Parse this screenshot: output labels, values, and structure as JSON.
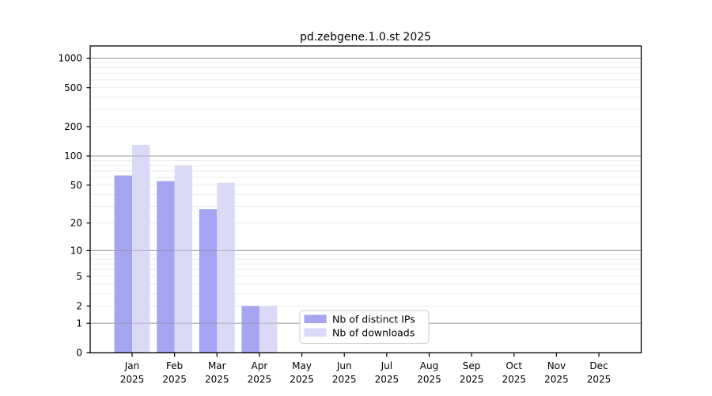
{
  "chart_data": {
    "type": "bar",
    "title": "pd.zebgene.1.0.st 2025",
    "year": "2025",
    "categories": [
      "Jan",
      "Feb",
      "Mar",
      "Apr",
      "May",
      "Jun",
      "Jul",
      "Aug",
      "Sep",
      "Oct",
      "Nov",
      "Dec"
    ],
    "series": [
      {
        "name": "Nb of distinct IPs",
        "color": "#a5a5f2",
        "values": [
          63,
          55,
          28,
          2,
          0,
          0,
          0,
          0,
          0,
          0,
          0,
          0
        ]
      },
      {
        "name": "Nb of downloads",
        "color": "#dadaf7",
        "values": [
          130,
          80,
          53,
          2,
          0,
          0,
          0,
          0,
          0,
          0,
          0,
          0
        ]
      }
    ],
    "y_axis": {
      "scale": "log1p",
      "ticks": [
        0,
        1,
        2,
        5,
        10,
        20,
        50,
        100,
        200,
        500,
        1000
      ],
      "major_gridlines": [
        1,
        10,
        100,
        1000
      ],
      "ylim_max": 1300
    },
    "xlabel": "",
    "ylabel": "",
    "grid": true,
    "legend_position": "inside-bottom-center"
  },
  "colors": {
    "background": "#ffffff",
    "axis": "#000000",
    "major_grid": "#b3b3b3",
    "minor_grid": "#e8e8e8",
    "grid_overlay": "rgba(128,128,128,0.45)",
    "legend_border": "#cccccc",
    "legend_fill": "#ffffff"
  }
}
